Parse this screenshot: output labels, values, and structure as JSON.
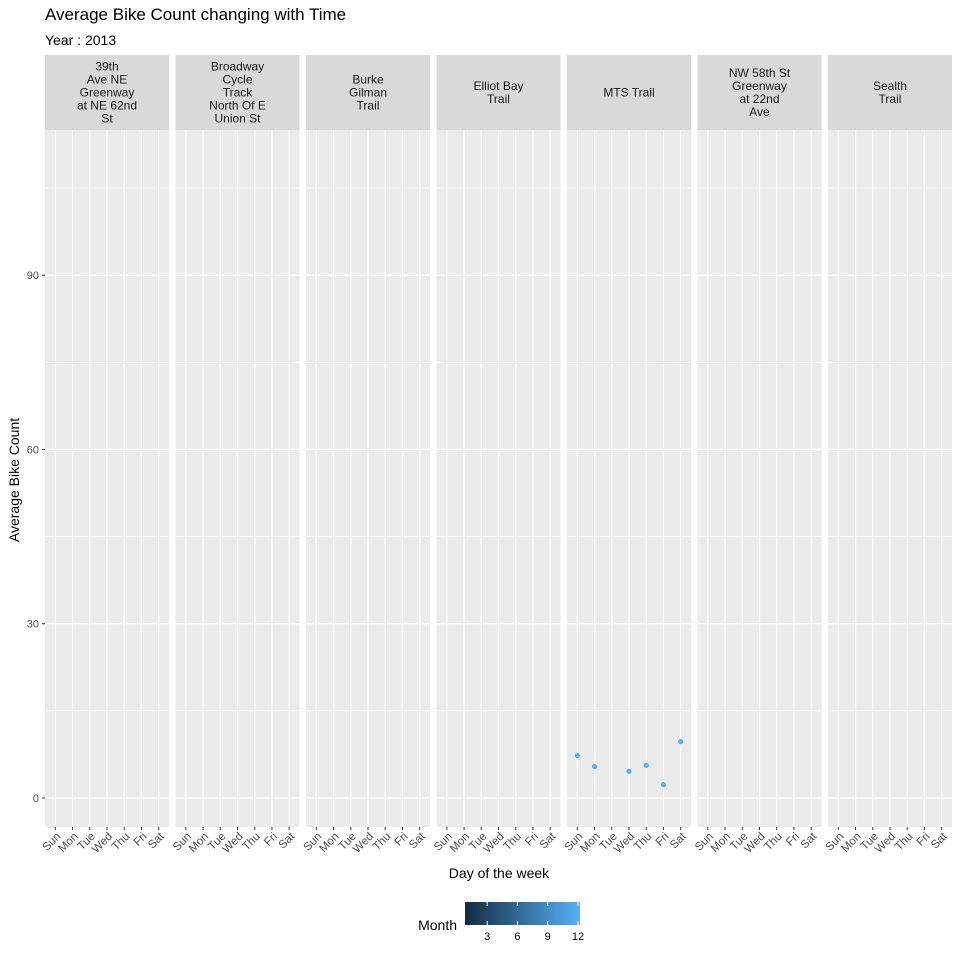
{
  "chart_data": {
    "type": "scatter",
    "title": "Average Bike Count changing with Time",
    "subtitle": "Year : 2013",
    "xlabel": "Day of the week",
    "ylabel": "Average Bike Count",
    "categories": [
      "Sun",
      "Mon",
      "Tue",
      "Wed",
      "Thu",
      "Fri",
      "Sat"
    ],
    "ylim": [
      -5,
      115
    ],
    "y_ticks": [
      0,
      30,
      60,
      90
    ],
    "panels": [
      {
        "label": [
          "39th",
          "Ave NE",
          "Greenway",
          "at NE 62nd",
          "St"
        ],
        "points": []
      },
      {
        "label": [
          "Broadway",
          "Cycle",
          "Track",
          "North Of E",
          "Union St"
        ],
        "points": []
      },
      {
        "label": [
          "Burke",
          "Gilman",
          "Trail"
        ],
        "points": []
      },
      {
        "label": [
          "Elliot Bay",
          "Trail"
        ],
        "points": []
      },
      {
        "label": [
          "MTS Trail"
        ],
        "points": [
          {
            "day": "Sun",
            "y": 7.3,
            "month": 12
          },
          {
            "day": "Mon",
            "y": 5.4,
            "month": 12
          },
          {
            "day": "Wed",
            "y": 4.6,
            "month": 12
          },
          {
            "day": "Thu",
            "y": 5.6,
            "month": 12
          },
          {
            "day": "Fri",
            "y": 2.3,
            "month": 12
          },
          {
            "day": "Sat",
            "y": 9.7,
            "month": 12
          }
        ]
      },
      {
        "label": [
          "NW 58th St",
          "Greenway",
          "at 22nd",
          "Ave"
        ],
        "points": []
      },
      {
        "label": [
          "Sealth",
          "Trail"
        ],
        "points": []
      }
    ],
    "legend": {
      "title": "Month",
      "position": "bottom",
      "ticks": [
        3,
        6,
        9,
        12
      ],
      "range": [
        1,
        12
      ],
      "color_low": "#132B43",
      "color_high": "#56B1F7"
    },
    "grid": true,
    "panel_background": "#EBEBEB",
    "strip_background": "#D9D9D9"
  }
}
